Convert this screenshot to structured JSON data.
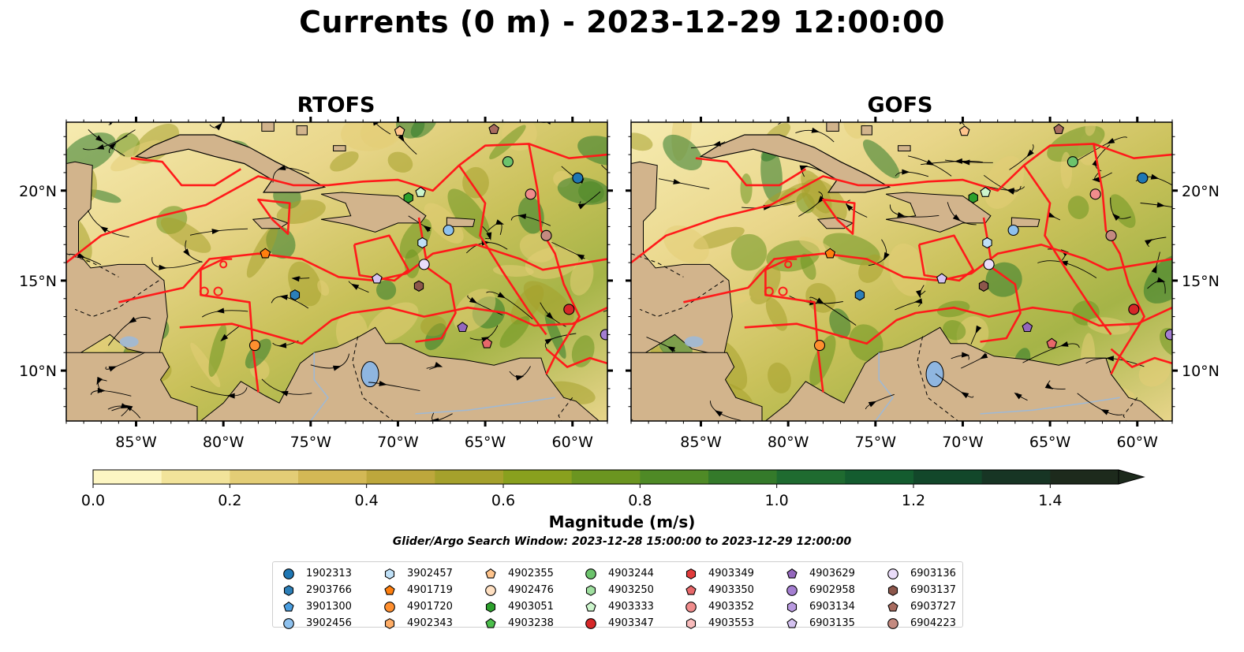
{
  "title": "Currents (0 m) - 2023-12-29 12:00:00",
  "chart_data": {
    "type": "map",
    "panels": [
      {
        "name": "RTOFS"
      },
      {
        "name": "GOFS"
      }
    ],
    "lon_ticks": [
      "85°W",
      "80°W",
      "75°W",
      "70°W",
      "65°W",
      "60°W"
    ],
    "lon_values": [
      -85,
      -80,
      -75,
      -70,
      -65,
      -60
    ],
    "lat_ticks": [
      "20°N",
      "15°N",
      "10°N"
    ],
    "lat_values": [
      20,
      15,
      10
    ],
    "lon_range": [
      -89,
      -58
    ],
    "lat_range": [
      7.2,
      23.8
    ],
    "colorbar": {
      "title": "Magnitude (m/s)",
      "range": [
        0.0,
        1.5
      ],
      "extend": "max",
      "tick_values": [
        0.0,
        0.2,
        0.4,
        0.6,
        0.8,
        1.0,
        1.2,
        1.4
      ],
      "tick_labels": [
        "0.0",
        "0.2",
        "0.4",
        "0.6",
        "0.8",
        "1.0",
        "1.2",
        "1.4"
      ],
      "colors": [
        "#fdf6c3",
        "#f2e39a",
        "#e3cd76",
        "#d3b855",
        "#bda73c",
        "#a5a12c",
        "#89a01e",
        "#6b9520",
        "#4f8a26",
        "#347a2a",
        "#1f6b30",
        "#145c2f",
        "#12472a",
        "#173524",
        "#1d2a1c"
      ]
    },
    "search_window": "Glider/Argo Search Window: 2023-12-28 15:00:00 to 2023-12-29 12:00:00",
    "floats": [
      {
        "id": "1902313",
        "marker": "circle",
        "color": "#1f77b4",
        "lon": -59.7,
        "lat": 20.7
      },
      {
        "id": "2903766",
        "marker": "hexagon",
        "color": "#2c7fb8",
        "lon": -75.9,
        "lat": 14.2
      },
      {
        "id": "3901300",
        "marker": "pentagon",
        "color": "#4a9ee0",
        "lon": null,
        "lat": null
      },
      {
        "id": "3902456",
        "marker": "circle",
        "color": "#8ec1ee",
        "lon": -67.1,
        "lat": 17.8
      },
      {
        "id": "3902457",
        "marker": "hexagon",
        "color": "#bfe0f7",
        "lon": -68.6,
        "lat": 17.1
      },
      {
        "id": "4901719",
        "marker": "pentagon",
        "color": "#ff7f0e",
        "lon": -77.6,
        "lat": 16.5
      },
      {
        "id": "4901720",
        "marker": "circle",
        "color": "#ff8f2f",
        "lon": -78.2,
        "lat": 11.4
      },
      {
        "id": "4902343",
        "marker": "hexagon",
        "color": "#ffad66",
        "lon": null,
        "lat": null
      },
      {
        "id": "4902355",
        "marker": "pentagon",
        "color": "#ffc48c",
        "lon": -69.9,
        "lat": 23.3
      },
      {
        "id": "4902476",
        "marker": "circle",
        "color": "#ffe0c2",
        "lon": null,
        "lat": null
      },
      {
        "id": "4903051",
        "marker": "hexagon",
        "color": "#2ca02c",
        "lon": -69.4,
        "lat": 19.6
      },
      {
        "id": "4903238",
        "marker": "pentagon",
        "color": "#4cbf4c",
        "lon": null,
        "lat": null
      },
      {
        "id": "4903244",
        "marker": "circle",
        "color": "#6cc36c",
        "lon": -63.7,
        "lat": 21.6
      },
      {
        "id": "4903250",
        "marker": "hexagon",
        "color": "#9fdf9f",
        "lon": null,
        "lat": null
      },
      {
        "id": "4903333",
        "marker": "pentagon",
        "color": "#ccf5cc",
        "lon": -68.7,
        "lat": 19.9
      },
      {
        "id": "4903347",
        "marker": "circle",
        "color": "#d62728",
        "lon": -60.2,
        "lat": 13.4
      },
      {
        "id": "4903349",
        "marker": "hexagon",
        "color": "#e03b3b",
        "lon": null,
        "lat": null
      },
      {
        "id": "4903350",
        "marker": "pentagon",
        "color": "#e8686a",
        "lon": -64.9,
        "lat": 11.5
      },
      {
        "id": "4903352",
        "marker": "circle",
        "color": "#f08c8c",
        "lon": -62.4,
        "lat": 19.8
      },
      {
        "id": "4903553",
        "marker": "hexagon",
        "color": "#f9bcbc",
        "lon": null,
        "lat": null
      },
      {
        "id": "4903629",
        "marker": "pentagon",
        "color": "#9467bd",
        "lon": -66.3,
        "lat": 12.4
      },
      {
        "id": "6902958",
        "marker": "circle",
        "color": "#a47ed1",
        "lon": -58.1,
        "lat": 12.0
      },
      {
        "id": "6903134",
        "marker": "hexagon",
        "color": "#b99ae0",
        "lon": null,
        "lat": null
      },
      {
        "id": "6903135",
        "marker": "pentagon",
        "color": "#d4c2f0",
        "lon": -71.2,
        "lat": 15.1
      },
      {
        "id": "6903136",
        "marker": "circle",
        "color": "#eadcf9",
        "lon": -68.5,
        "lat": 15.9
      },
      {
        "id": "6903137",
        "marker": "hexagon",
        "color": "#8c564b",
        "lon": -68.8,
        "lat": 14.7
      },
      {
        "id": "6903727",
        "marker": "pentagon",
        "color": "#a86b5f",
        "lon": -64.5,
        "lat": 23.4
      },
      {
        "id": "6904223",
        "marker": "circle",
        "color": "#c48a80",
        "lon": -61.5,
        "lat": 17.5
      }
    ]
  },
  "legend_columns": [
    [
      "1902313",
      "2903766",
      "3901300",
      "3902456"
    ],
    [
      "3902457",
      "4901719",
      "4901720",
      "4902343"
    ],
    [
      "4902355",
      "4902476",
      "4903051",
      "4903238"
    ],
    [
      "4903244",
      "4903250",
      "4903333",
      "4903347"
    ],
    [
      "4903349",
      "4903350",
      "4903352",
      "4903553"
    ],
    [
      "4903629",
      "6902958",
      "6903134",
      "6903135"
    ],
    [
      "6903136",
      "6903137",
      "6903727",
      "6904223"
    ]
  ]
}
